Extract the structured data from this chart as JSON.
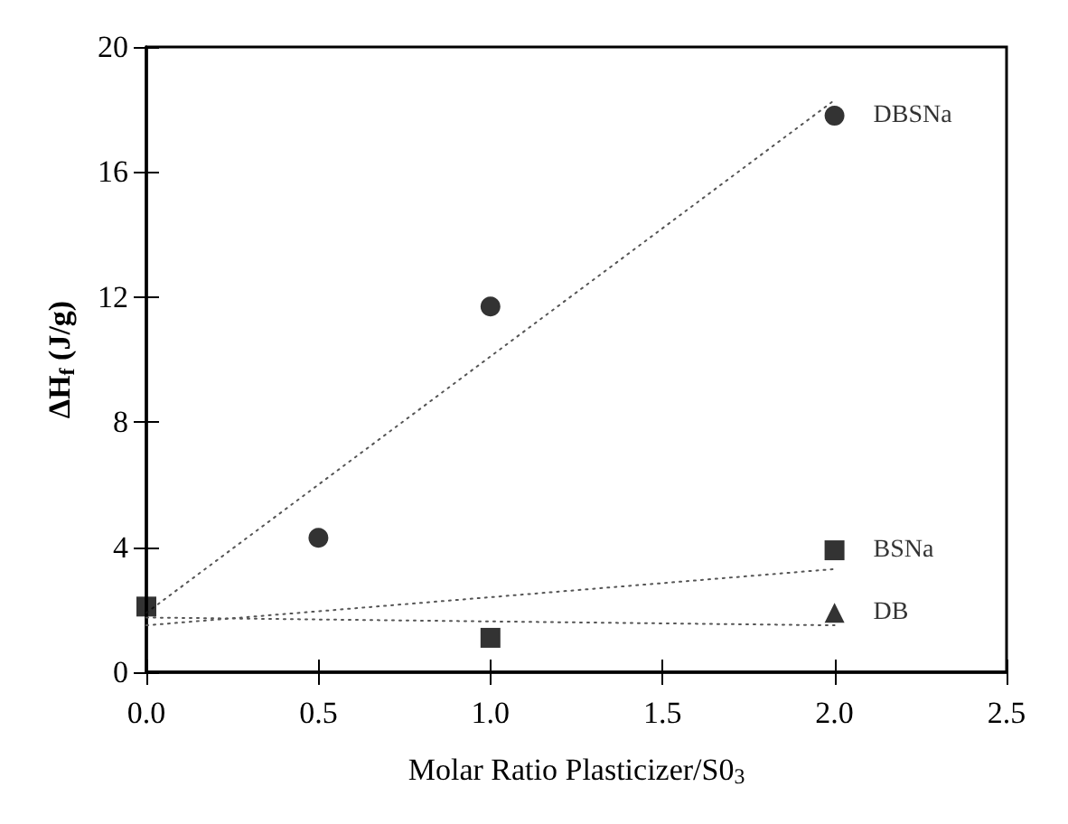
{
  "chart_data": {
    "type": "scatter",
    "xlabel": "Molar Ratio Plasticizer/S0$_{3}$",
    "ylabel": "ΔH$_{f}$ (J/g)",
    "xlim": [
      0,
      2.5
    ],
    "ylim": [
      0,
      20
    ],
    "xticks": [
      {
        "value": 0,
        "label": "0.0"
      },
      {
        "value": 0.5,
        "label": "0.5"
      },
      {
        "value": 1,
        "label": "1.0"
      },
      {
        "value": 1.5,
        "label": "1.5"
      },
      {
        "value": 2,
        "label": "2.0"
      },
      {
        "value": 2.5,
        "label": "2.5"
      }
    ],
    "yticks": [
      0,
      4,
      8,
      12,
      16,
      20
    ],
    "grid": false,
    "legend": false,
    "series": [
      {
        "name": "DBSNa",
        "marker": "circle",
        "color": "#000000",
        "x": [
          0.5,
          1,
          2
        ],
        "values": [
          4.3,
          11.7,
          17.8
        ]
      },
      {
        "name": "BSNa",
        "marker": "square",
        "color": "#000000",
        "x": [
          0,
          1,
          2
        ],
        "values": [
          2.1,
          1.1,
          3.9
        ]
      },
      {
        "name": "DB",
        "marker": "triangle",
        "color": "#000000",
        "x": [
          2
        ],
        "values": [
          1.9
        ]
      },
      {
        "type": "line",
        "marker": "none",
        "line_style": "dotted",
        "color": "#555555",
        "x": [
          0,
          2
        ],
        "values": [
          1.9,
          18.3
        ]
      },
      {
        "type": "line",
        "marker": "none",
        "line_style": "dotted",
        "color": "#555555",
        "x": [
          0,
          2
        ],
        "values": [
          1.5,
          3.3
        ]
      },
      {
        "type": "line",
        "marker": "none",
        "line_style": "dotted",
        "color": "#555555",
        "x": [
          0,
          2
        ],
        "values": [
          1.75,
          1.5
        ]
      }
    ]
  }
}
